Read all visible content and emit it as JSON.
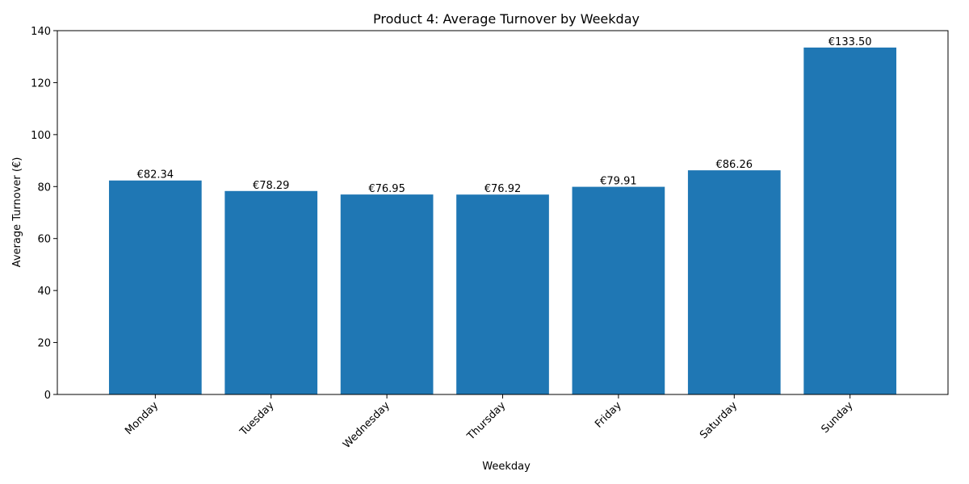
{
  "chart_data": {
    "type": "bar",
    "title": "Product 4: Average Turnover by Weekday",
    "xlabel": "Weekday",
    "ylabel": "Average Turnover (€)",
    "categories": [
      "Monday",
      "Tuesday",
      "Wednesday",
      "Thursday",
      "Friday",
      "Saturday",
      "Sunday"
    ],
    "values": [
      82.34,
      78.29,
      76.95,
      76.92,
      79.91,
      86.26,
      133.5
    ],
    "data_labels": [
      "€82.34",
      "€78.29",
      "€76.95",
      "€76.92",
      "€79.91",
      "€86.26",
      "€133.50"
    ],
    "ylim": [
      0,
      140
    ],
    "yticks": [
      0,
      20,
      40,
      60,
      80,
      100,
      120,
      140
    ],
    "bar_color": "#1f77b4",
    "grid": false,
    "legend": "none",
    "xtick_rotation_deg": 45
  }
}
